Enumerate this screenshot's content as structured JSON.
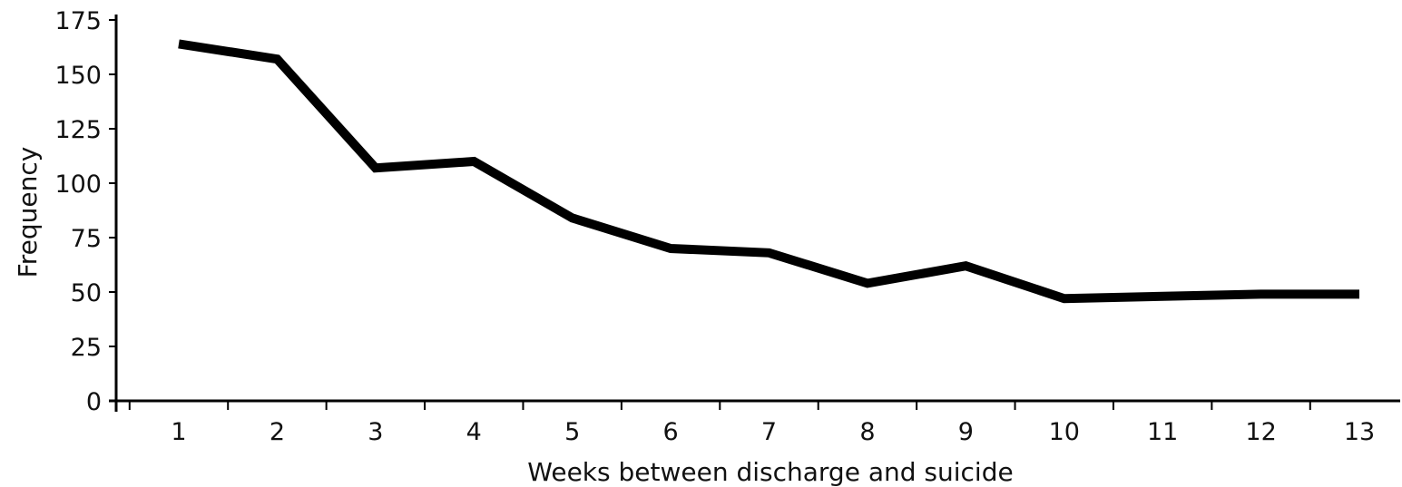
{
  "chart_data": {
    "type": "line",
    "title": "",
    "xlabel": "Weeks between discharge and suicide",
    "ylabel": "Frequency",
    "x": [
      1,
      2,
      3,
      4,
      5,
      6,
      7,
      8,
      9,
      10,
      11,
      12,
      13
    ],
    "x_tick_labels": [
      "1",
      "2",
      "3",
      "4",
      "5",
      "6",
      "7",
      "8",
      "9",
      "10",
      "11",
      "12",
      "13"
    ],
    "y_ticks": [
      0,
      25,
      50,
      75,
      100,
      125,
      150,
      175
    ],
    "y_tick_labels": [
      "0",
      "25",
      "50",
      "75",
      "100",
      "125",
      "150",
      "175"
    ],
    "ylim": [
      0,
      175
    ],
    "grid": false,
    "legend": "none",
    "series": [
      {
        "values": [
          164,
          157,
          107,
          110,
          84,
          70,
          68,
          54,
          62,
          47,
          48,
          49,
          49
        ]
      }
    ],
    "colors": {
      "line": "#000000",
      "axis": "#000000",
      "text": "#111111"
    }
  }
}
